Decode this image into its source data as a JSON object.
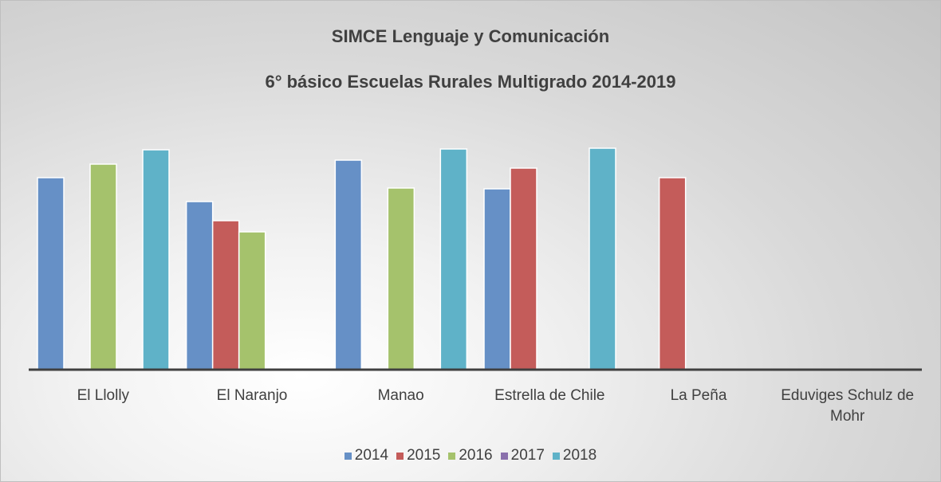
{
  "chart_data": {
    "type": "bar",
    "title": "SIMCE Lenguaje y Comunicación",
    "subtitle": "6° básico Escuelas Rurales Multigrado 2014-2019",
    "categories": [
      "El Llolly",
      "El Naranjo",
      "Manao",
      "Estrella de Chile",
      "La Peña",
      "Eduviges Schulz de Mohr"
    ],
    "series": [
      {
        "name": "2014",
        "color": "#6690c6",
        "values": [
          241,
          211,
          263,
          227,
          null,
          null
        ]
      },
      {
        "name": "2015",
        "color": "#c45c5a",
        "values": [
          null,
          187,
          null,
          253,
          241,
          null
        ]
      },
      {
        "name": "2016",
        "color": "#a5c26c",
        "values": [
          258,
          173,
          228,
          null,
          null,
          null
        ]
      },
      {
        "name": "2017",
        "color": "#8a70ac",
        "values": [
          null,
          null,
          null,
          null,
          null,
          null
        ]
      },
      {
        "name": "2018",
        "color": "#5fb2c8",
        "values": [
          276,
          null,
          277,
          278,
          null,
          null
        ]
      }
    ],
    "ylim": [
      0,
      300
    ],
    "legend": "bottom"
  }
}
